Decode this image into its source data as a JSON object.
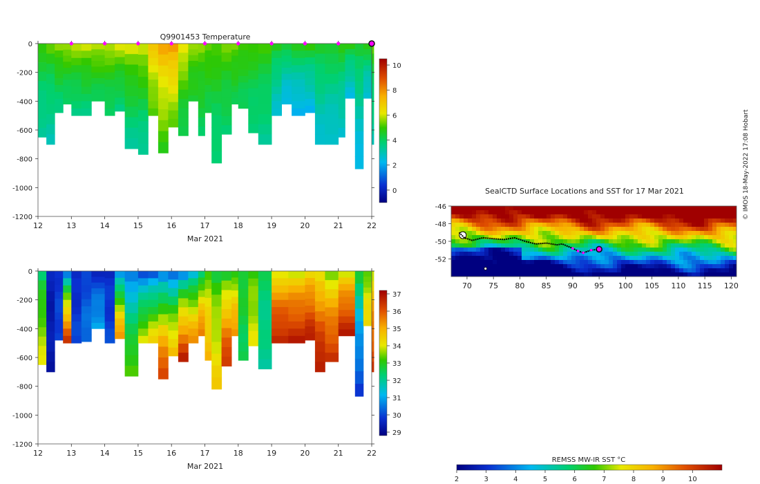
{
  "chart_data": [
    {
      "type": "heatmap",
      "title": "Q9901453  Temperature",
      "xlabel": "Mar 2021",
      "ylabel": "",
      "xlim": [
        12,
        22
      ],
      "ylim": [
        -1200,
        0
      ],
      "x_ticks": [
        "12",
        "13",
        "14",
        "15",
        "16",
        "17",
        "18",
        "19",
        "20",
        "21",
        "22"
      ],
      "y_ticks": [
        "0",
        "-200",
        "-400",
        "-600",
        "-800",
        "-1000",
        "-1200"
      ],
      "colorbar": {
        "min": -1,
        "max": 10.5,
        "ticks": [
          "0",
          "2",
          "4",
          "6",
          "8",
          "10"
        ]
      },
      "surface_markers": [
        13,
        14,
        15,
        16,
        17,
        18,
        19,
        20,
        21
      ],
      "current_marker": 22,
      "profiles": [
        {
          "t": 12.0,
          "d": 650,
          "s": 5.2,
          "deep": 3.2
        },
        {
          "t": 12.25,
          "d": 700,
          "s": 5.5,
          "deep": 3.0
        },
        {
          "t": 12.5,
          "d": 480,
          "s": 6.0,
          "deep": 3.6
        },
        {
          "t": 12.75,
          "d": 420,
          "s": 6.1,
          "deep": 3.8
        },
        {
          "t": 13.0,
          "d": 500,
          "s": 6.2,
          "deep": 3.5
        },
        {
          "t": 13.3,
          "d": 500,
          "s": 6.3,
          "deep": 3.6
        },
        {
          "t": 13.6,
          "d": 400,
          "s": 6.3,
          "deep": 4.0
        },
        {
          "t": 14.0,
          "d": 500,
          "s": 6.2,
          "deep": 3.8
        },
        {
          "t": 14.3,
          "d": 470,
          "s": 6.4,
          "deep": 3.6
        },
        {
          "t": 14.6,
          "d": 730,
          "s": 6.5,
          "deep": 3.3
        },
        {
          "t": 15.0,
          "d": 770,
          "s": 6.6,
          "deep": 3.2
        },
        {
          "t": 15.3,
          "d": 500,
          "s": 7.4,
          "deep": 5.0
        },
        {
          "t": 15.6,
          "d": 760,
          "s": 8.0,
          "deep": 4.8
        },
        {
          "t": 15.9,
          "d": 580,
          "s": 8.3,
          "deep": 5.2
        },
        {
          "t": 16.2,
          "d": 640,
          "s": 6.8,
          "deep": 4.0
        },
        {
          "t": 16.5,
          "d": 400,
          "s": 5.8,
          "deep": 4.4
        },
        {
          "t": 16.8,
          "d": 640,
          "s": 5.7,
          "deep": 4.0
        },
        {
          "t": 17.0,
          "d": 480,
          "s": 5.6,
          "deep": 4.2
        },
        {
          "t": 17.2,
          "d": 830,
          "s": 5.5,
          "deep": 3.6
        },
        {
          "t": 17.5,
          "d": 630,
          "s": 5.6,
          "deep": 3.8
        },
        {
          "t": 17.8,
          "d": 420,
          "s": 5.6,
          "deep": 4.2
        },
        {
          "t": 18.0,
          "d": 450,
          "s": 5.4,
          "deep": 4.0
        },
        {
          "t": 18.3,
          "d": 620,
          "s": 5.3,
          "deep": 3.6
        },
        {
          "t": 18.6,
          "d": 700,
          "s": 5.2,
          "deep": 3.4
        },
        {
          "t": 19.0,
          "d": 500,
          "s": 5.1,
          "deep": 2.6
        },
        {
          "t": 19.3,
          "d": 420,
          "s": 5.0,
          "deep": 2.2
        },
        {
          "t": 19.6,
          "d": 500,
          "s": 5.2,
          "deep": 2.0
        },
        {
          "t": 20.0,
          "d": 480,
          "s": 5.3,
          "deep": 2.2
        },
        {
          "t": 20.3,
          "d": 700,
          "s": 5.0,
          "deep": 2.6
        },
        {
          "t": 20.6,
          "d": 700,
          "s": 5.0,
          "deep": 2.5
        },
        {
          "t": 21.0,
          "d": 650,
          "s": 5.1,
          "deep": 2.6
        },
        {
          "t": 21.2,
          "d": 380,
          "s": 5.2,
          "deep": 2.4
        },
        {
          "t": 21.5,
          "d": 870,
          "s": 5.0,
          "deep": 2.2
        },
        {
          "t": 21.75,
          "d": 380,
          "s": 5.3,
          "deep": 2.4
        },
        {
          "t": 22.0,
          "d": 700,
          "s": 5.5,
          "deep": 3.0
        }
      ]
    },
    {
      "type": "heatmap",
      "title": "",
      "xlabel": "Mar 2021",
      "ylabel": "",
      "xlim": [
        12,
        22
      ],
      "ylim": [
        -1200,
        0
      ],
      "x_ticks": [
        "12",
        "13",
        "14",
        "15",
        "16",
        "17",
        "18",
        "19",
        "20",
        "21",
        "22"
      ],
      "y_ticks": [
        "0",
        "-200",
        "-400",
        "-600",
        "-800",
        "-1000",
        "-1200"
      ],
      "colorbar": {
        "min": 28.8,
        "max": 37.2,
        "ticks": [
          "29",
          "30",
          "31",
          "32",
          "33",
          "34",
          "35",
          "36",
          "37"
        ]
      },
      "profiles": [
        {
          "t": 12.0,
          "d": 650,
          "s": 32.0,
          "deep": 34.0
        },
        {
          "t": 12.25,
          "d": 700,
          "s": 29.5,
          "deep": 29.3
        },
        {
          "t": 12.5,
          "d": 480,
          "s": 29.8,
          "deep": 30.0
        },
        {
          "t": 12.75,
          "d": 500,
          "s": 29.6,
          "deep": 36.5
        },
        {
          "t": 13.0,
          "d": 500,
          "s": 29.5,
          "deep": 30.0
        },
        {
          "t": 13.3,
          "d": 490,
          "s": 29.8,
          "deep": 30.5
        },
        {
          "t": 13.6,
          "d": 400,
          "s": 29.4,
          "deep": 31.0
        },
        {
          "t": 14.0,
          "d": 500,
          "s": 29.6,
          "deep": 30.0
        },
        {
          "t": 14.3,
          "d": 470,
          "s": 29.8,
          "deep": 35.5
        },
        {
          "t": 14.6,
          "d": 730,
          "s": 30.0,
          "deep": 33.5
        },
        {
          "t": 15.0,
          "d": 500,
          "s": 29.5,
          "deep": 34.0
        },
        {
          "t": 15.3,
          "d": 500,
          "s": 29.4,
          "deep": 34.5
        },
        {
          "t": 15.6,
          "d": 750,
          "s": 29.5,
          "deep": 36.5
        },
        {
          "t": 15.9,
          "d": 590,
          "s": 29.6,
          "deep": 35.0
        },
        {
          "t": 16.2,
          "d": 630,
          "s": 29.8,
          "deep": 36.8
        },
        {
          "t": 16.5,
          "d": 500,
          "s": 30.5,
          "deep": 35.5
        },
        {
          "t": 16.8,
          "d": 450,
          "s": 31.5,
          "deep": 35.8
        },
        {
          "t": 17.0,
          "d": 620,
          "s": 33.0,
          "deep": 35.0
        },
        {
          "t": 17.2,
          "d": 820,
          "s": 32.5,
          "deep": 34.5
        },
        {
          "t": 17.5,
          "d": 660,
          "s": 32.0,
          "deep": 36.5
        },
        {
          "t": 17.8,
          "d": 450,
          "s": 32.5,
          "deep": 35.5
        },
        {
          "t": 18.0,
          "d": 620,
          "s": 33.0,
          "deep": 32.5
        },
        {
          "t": 18.3,
          "d": 520,
          "s": 33.0,
          "deep": 34.0
        },
        {
          "t": 18.6,
          "d": 680,
          "s": 32.5,
          "deep": 32.0
        },
        {
          "t": 19.0,
          "d": 500,
          "s": 33.5,
          "deep": 36.8
        },
        {
          "t": 19.5,
          "d": 500,
          "s": 33.5,
          "deep": 36.8
        },
        {
          "t": 20.0,
          "d": 480,
          "s": 33.8,
          "deep": 36.8
        },
        {
          "t": 20.3,
          "d": 700,
          "s": 33.5,
          "deep": 37.0
        },
        {
          "t": 20.6,
          "d": 630,
          "s": 33.0,
          "deep": 36.6
        },
        {
          "t": 21.0,
          "d": 450,
          "s": 33.5,
          "deep": 36.8
        },
        {
          "t": 21.5,
          "d": 870,
          "s": 33.2,
          "deep": 29.8
        },
        {
          "t": 21.75,
          "d": 380,
          "s": 33.0,
          "deep": 34.5
        },
        {
          "t": 22.0,
          "d": 700,
          "s": 33.5,
          "deep": 36.5
        }
      ]
    },
    {
      "type": "heatmap",
      "title": "SealCTD Surface Locations and SST for 17 Mar 2021",
      "xlabel": "",
      "ylabel": "",
      "xlim": [
        67,
        121
      ],
      "ylim": [
        -54,
        -46
      ],
      "x_ticks": [
        "70",
        "75",
        "80",
        "85",
        "90",
        "95",
        "100",
        "105",
        "110",
        "115",
        "120"
      ],
      "y_ticks": [
        "-46",
        "-48",
        "-50",
        "-52"
      ],
      "colorbar_label": "REMSS MW-IR SST °C",
      "colorbar": {
        "min": 2,
        "max": 11,
        "ticks": [
          "2",
          "3",
          "4",
          "5",
          "6",
          "7",
          "8",
          "9",
          "10"
        ]
      },
      "track": [
        [
          68.5,
          -49.0
        ],
        [
          69.5,
          -49.6
        ],
        [
          71,
          -49.9
        ],
        [
          73,
          -49.6
        ],
        [
          75,
          -49.7
        ],
        [
          77,
          -49.8
        ],
        [
          79,
          -49.6
        ],
        [
          81,
          -50.0
        ],
        [
          83,
          -50.3
        ],
        [
          85,
          -50.2
        ],
        [
          87,
          -50.4
        ],
        [
          88,
          -50.3
        ],
        [
          90,
          -50.8
        ],
        [
          91,
          -51.1
        ],
        [
          92,
          -51.3
        ],
        [
          93.5,
          -51.0
        ],
        [
          95,
          -50.9
        ]
      ],
      "current_location": [
        95,
        -50.9
      ],
      "credit": "© IMOS 18-May-2022 17:08 Hobart"
    }
  ]
}
